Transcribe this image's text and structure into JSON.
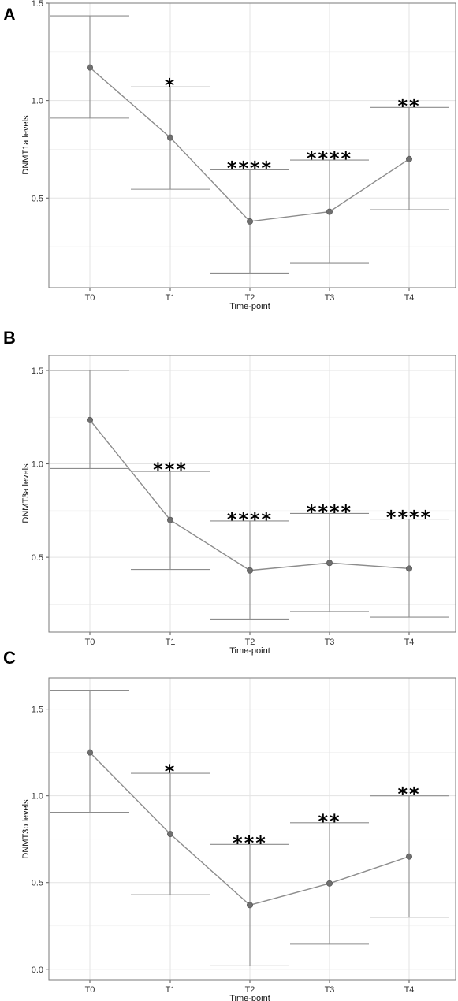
{
  "chart_data": [
    {
      "panel": "A",
      "type": "line",
      "categories": [
        "T0",
        "T1",
        "T2",
        "T3",
        "T4"
      ],
      "values": [
        1.17,
        0.81,
        0.38,
        0.43,
        0.7
      ],
      "error_lower": [
        0.91,
        0.545,
        0.115,
        0.165,
        0.44
      ],
      "error_upper": [
        1.435,
        1.07,
        0.645,
        0.695,
        0.965
      ],
      "significance": [
        "",
        "*",
        "****",
        "****",
        "**"
      ],
      "xlabel": "Time-point",
      "ylabel": "DNMT1a levels",
      "ylim": [
        0.04,
        1.5
      ],
      "yticks": [
        0.5,
        1.0,
        1.5
      ],
      "ytick_labels": [
        "0.5",
        "1.0",
        "1.5"
      ],
      "grid": true
    },
    {
      "panel": "B",
      "type": "line",
      "categories": [
        "T0",
        "T1",
        "T2",
        "T3",
        "T4"
      ],
      "values": [
        1.235,
        0.7,
        0.43,
        0.47,
        0.44
      ],
      "error_lower": [
        0.975,
        0.435,
        0.17,
        0.21,
        0.18
      ],
      "error_upper": [
        1.5,
        0.96,
        0.695,
        0.735,
        0.705
      ],
      "significance": [
        "",
        "***",
        "****",
        "****",
        "****"
      ],
      "xlabel": "Time-point",
      "ylabel": "DNMT3a levels",
      "ylim": [
        0.1,
        1.58
      ],
      "yticks": [
        0.5,
        1.0,
        1.5
      ],
      "ytick_labels": [
        "0.5",
        "1.0",
        "1.5"
      ],
      "grid": true
    },
    {
      "panel": "C",
      "type": "line",
      "categories": [
        "T0",
        "T1",
        "T2",
        "T3",
        "T4"
      ],
      "values": [
        1.25,
        0.78,
        0.37,
        0.495,
        0.65
      ],
      "error_lower": [
        0.905,
        0.43,
        0.02,
        0.145,
        0.3
      ],
      "error_upper": [
        1.605,
        1.13,
        0.72,
        0.845,
        1.0
      ],
      "significance": [
        "",
        "*",
        "***",
        "**",
        "**"
      ],
      "xlabel": "Time-point",
      "ylabel": "DNMT3b levels",
      "ylim": [
        -0.06,
        1.68
      ],
      "yticks": [
        0.0,
        0.5,
        1.0,
        1.5
      ],
      "ytick_labels": [
        "0.0",
        "0.5",
        "1.0",
        "1.5"
      ],
      "grid": true
    }
  ]
}
